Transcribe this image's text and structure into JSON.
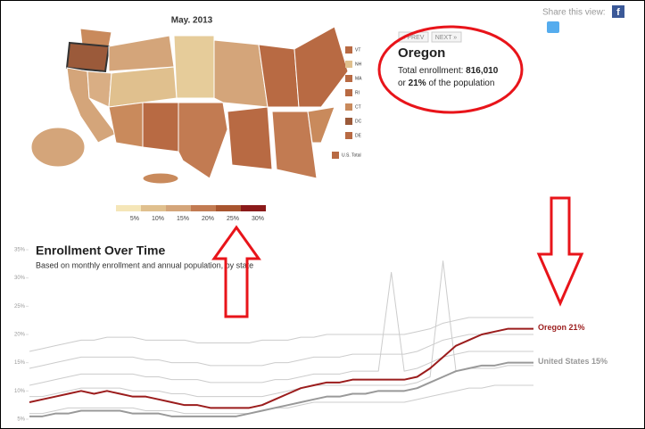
{
  "map": {
    "title": "May. 2013",
    "scale_labels": [
      "5%",
      "10%",
      "15%",
      "20%",
      "25%",
      "30%"
    ],
    "small_states": [
      "VT",
      "NH",
      "MA",
      "RI",
      "CT",
      "DC",
      "DE"
    ],
    "us_total": "U.S. Total"
  },
  "share": {
    "label": "Share this view:"
  },
  "info": {
    "prev": "« PREV",
    "next": "NEXT »",
    "state": "Oregon",
    "enrollment_label": "Total enrollment: ",
    "enrollment": "816,010",
    "share_prefix": "or ",
    "share_value": "21%",
    "share_suffix": " of the population"
  },
  "chart_data": {
    "type": "line",
    "title": "Enrollment Over Time",
    "subtitle": "Based on monthly enrollment and annual population, by state",
    "ylim": [
      5,
      35
    ],
    "yticks": [
      {
        "value": 5,
        "label": "5%"
      },
      {
        "value": 10,
        "label": "10%"
      },
      {
        "value": 15,
        "label": "15%"
      },
      {
        "value": 20,
        "label": "20%"
      },
      {
        "value": 25,
        "label": "25%"
      },
      {
        "value": 30,
        "label": "30%"
      },
      {
        "value": 35,
        "label": "35%"
      }
    ],
    "series": [
      {
        "color": "#cccccc",
        "values": [
          17,
          17.5,
          18,
          18.5,
          19,
          19,
          19.5,
          19.5,
          19.5,
          19,
          19,
          19,
          19,
          18.5,
          18.5,
          18.5,
          18.5,
          18.5,
          19,
          19,
          19,
          19.5,
          19.5,
          20,
          20,
          20,
          20,
          20,
          20,
          20,
          20.5,
          21,
          22,
          22.5,
          23,
          23,
          23,
          23,
          23,
          23
        ]
      },
      {
        "color": "#cccccc",
        "values": [
          14,
          14.5,
          15,
          15.5,
          16,
          16,
          16,
          16,
          16,
          15.5,
          15.5,
          15,
          15,
          15,
          14.5,
          14.5,
          14.5,
          14.5,
          14.5,
          15,
          15,
          15.5,
          16,
          16,
          16,
          16.5,
          16.5,
          16.5,
          16.5,
          16.5,
          17,
          18,
          19,
          19.5,
          20,
          20,
          20,
          20,
          20,
          20
        ]
      },
      {
        "color": "#cccccc",
        "values": [
          11,
          11.5,
          12,
          12.5,
          13,
          13,
          13,
          13,
          13,
          12.5,
          12.5,
          12,
          12,
          12,
          11.5,
          11.5,
          11.5,
          11.5,
          11.5,
          12,
          12,
          12.5,
          13,
          13,
          13,
          13.5,
          13.5,
          13.5,
          31,
          13.5,
          14,
          15,
          16,
          16.5,
          17,
          17,
          17,
          17,
          17,
          17
        ]
      },
      {
        "color": "#cccccc",
        "values": [
          9,
          9,
          9.5,
          10,
          10.5,
          10.5,
          10.5,
          10.5,
          10,
          10,
          10,
          9.5,
          9.5,
          9,
          9,
          9,
          9,
          9,
          9,
          9.5,
          10,
          10.5,
          11,
          11,
          11,
          11,
          11,
          11,
          11,
          11,
          11.5,
          12.5,
          33,
          13.5,
          14,
          14,
          14,
          14.5,
          14.5,
          14.5
        ]
      },
      {
        "color": "#cccccc",
        "values": [
          6,
          6,
          6.5,
          7,
          7,
          7,
          7,
          7,
          7,
          6.5,
          6.5,
          6.5,
          6,
          6,
          6,
          6,
          6,
          6,
          6.5,
          7,
          7,
          7.5,
          8,
          8,
          8,
          8,
          8,
          8,
          8,
          8,
          8.5,
          9,
          9.5,
          10,
          10.5,
          10.5,
          11,
          11,
          11,
          11
        ]
      },
      {
        "name": "United States 15%",
        "color": "#999999",
        "values": [
          5.5,
          5.5,
          6,
          6,
          6.5,
          6.5,
          6.5,
          6.5,
          6,
          6,
          6,
          5.5,
          5.5,
          5.5,
          5.5,
          5.5,
          5.5,
          6,
          6.5,
          7,
          7.5,
          8,
          8.5,
          9,
          9,
          9.5,
          9.5,
          10,
          10,
          10,
          10.5,
          11.5,
          12.5,
          13.5,
          14,
          14.5,
          14.5,
          15,
          15,
          15
        ]
      },
      {
        "name": "Oregon 21%",
        "color": "#9b1c1c",
        "values": [
          8,
          8.5,
          9,
          9.5,
          10,
          9.5,
          10,
          9.5,
          9,
          9,
          8.5,
          8,
          7.5,
          7.5,
          7,
          7,
          7,
          7,
          7.5,
          8.5,
          9.5,
          10.5,
          11,
          11.5,
          11.5,
          12,
          12,
          12,
          12,
          12,
          12.5,
          14,
          16,
          18,
          19,
          20,
          20.5,
          21,
          21,
          21
        ]
      }
    ]
  }
}
